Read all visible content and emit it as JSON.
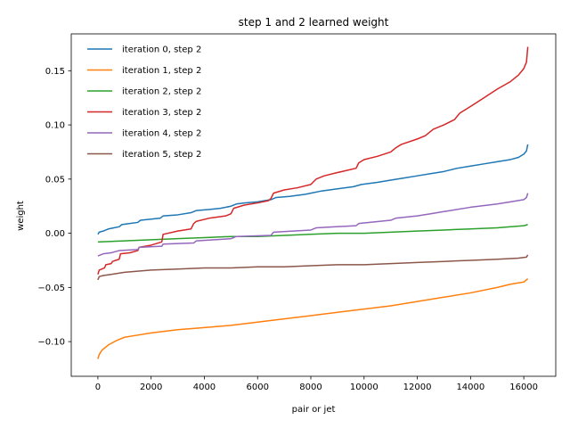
{
  "chart_data": {
    "type": "line",
    "title": "step 1 and 2 learned weight",
    "xlabel": "pair or jet",
    "ylabel": "weight",
    "xlim": [
      -1000,
      17200
    ],
    "ylim": [
      -0.132,
      0.184
    ],
    "xticks": [
      0,
      2000,
      4000,
      6000,
      8000,
      10000,
      12000,
      14000,
      16000
    ],
    "yticks": [
      -0.1,
      -0.05,
      0.0,
      0.05,
      0.1,
      0.15
    ],
    "xtick_labels": [
      "0",
      "2000",
      "4000",
      "6000",
      "8000",
      "10000",
      "12000",
      "14000",
      "16000"
    ],
    "ytick_labels": [
      "−0.10",
      "−0.05",
      "0.00",
      "0.05",
      "0.10",
      "0.15"
    ],
    "grid": false,
    "legend_position": "top-left",
    "series": [
      {
        "name": "iteration 0, step 2",
        "color": "#1f77b4",
        "points": [
          [
            0,
            -0.001
          ],
          [
            50,
            0.001
          ],
          [
            200,
            0.002
          ],
          [
            400,
            0.004
          ],
          [
            600,
            0.005
          ],
          [
            800,
            0.006
          ],
          [
            900,
            0.008
          ],
          [
            1200,
            0.009
          ],
          [
            1500,
            0.01
          ],
          [
            1600,
            0.012
          ],
          [
            2000,
            0.013
          ],
          [
            2350,
            0.014
          ],
          [
            2450,
            0.016
          ],
          [
            3000,
            0.017
          ],
          [
            3500,
            0.019
          ],
          [
            3700,
            0.021
          ],
          [
            4200,
            0.022
          ],
          [
            4600,
            0.023
          ],
          [
            5000,
            0.025
          ],
          [
            5200,
            0.027
          ],
          [
            5500,
            0.028
          ],
          [
            6000,
            0.029
          ],
          [
            6500,
            0.031
          ],
          [
            6700,
            0.033
          ],
          [
            7200,
            0.034
          ],
          [
            7800,
            0.036
          ],
          [
            8000,
            0.037
          ],
          [
            8400,
            0.039
          ],
          [
            9000,
            0.041
          ],
          [
            9600,
            0.043
          ],
          [
            9900,
            0.045
          ],
          [
            10500,
            0.047
          ],
          [
            11000,
            0.049
          ],
          [
            11500,
            0.051
          ],
          [
            12000,
            0.053
          ],
          [
            12500,
            0.055
          ],
          [
            13000,
            0.057
          ],
          [
            13500,
            0.06
          ],
          [
            14000,
            0.062
          ],
          [
            14500,
            0.064
          ],
          [
            15000,
            0.066
          ],
          [
            15500,
            0.068
          ],
          [
            15800,
            0.07
          ],
          [
            16000,
            0.073
          ],
          [
            16100,
            0.076
          ],
          [
            16150,
            0.082
          ]
        ]
      },
      {
        "name": "iteration 1, step 2",
        "color": "#ff7f0e",
        "points": [
          [
            0,
            -0.116
          ],
          [
            50,
            -0.112
          ],
          [
            150,
            -0.108
          ],
          [
            400,
            -0.103
          ],
          [
            700,
            -0.099
          ],
          [
            1000,
            -0.096
          ],
          [
            1500,
            -0.094
          ],
          [
            2000,
            -0.092
          ],
          [
            3000,
            -0.089
          ],
          [
            4000,
            -0.087
          ],
          [
            5000,
            -0.085
          ],
          [
            6000,
            -0.082
          ],
          [
            7000,
            -0.079
          ],
          [
            8000,
            -0.076
          ],
          [
            9000,
            -0.073
          ],
          [
            10000,
            -0.07
          ],
          [
            11000,
            -0.067
          ],
          [
            12000,
            -0.063
          ],
          [
            13000,
            -0.059
          ],
          [
            14000,
            -0.055
          ],
          [
            15000,
            -0.05
          ],
          [
            15500,
            -0.047
          ],
          [
            16000,
            -0.045
          ],
          [
            16150,
            -0.042
          ]
        ]
      },
      {
        "name": "iteration 2, step 2",
        "color": "#2ca02c",
        "points": [
          [
            0,
            -0.008
          ],
          [
            1000,
            -0.007
          ],
          [
            2000,
            -0.006
          ],
          [
            3000,
            -0.005
          ],
          [
            4000,
            -0.004
          ],
          [
            5000,
            -0.003
          ],
          [
            6000,
            -0.003
          ],
          [
            7000,
            -0.002
          ],
          [
            8000,
            -0.001
          ],
          [
            9000,
            -0.0
          ],
          [
            10000,
            0.0
          ],
          [
            11000,
            0.001
          ],
          [
            12000,
            0.002
          ],
          [
            13000,
            0.003
          ],
          [
            14000,
            0.004
          ],
          [
            15000,
            0.005
          ],
          [
            16000,
            0.007
          ],
          [
            16150,
            0.008
          ]
        ]
      },
      {
        "name": "iteration 3, step 2",
        "color": "#d62728",
        "points": [
          [
            0,
            -0.038
          ],
          [
            50,
            -0.034
          ],
          [
            250,
            -0.032
          ],
          [
            300,
            -0.029
          ],
          [
            500,
            -0.028
          ],
          [
            550,
            -0.026
          ],
          [
            800,
            -0.024
          ],
          [
            850,
            -0.019
          ],
          [
            1200,
            -0.018
          ],
          [
            1500,
            -0.016
          ],
          [
            1550,
            -0.013
          ],
          [
            2000,
            -0.011
          ],
          [
            2400,
            -0.008
          ],
          [
            2450,
            -0.001
          ],
          [
            3000,
            0.002
          ],
          [
            3500,
            0.004
          ],
          [
            3600,
            0.009
          ],
          [
            3700,
            0.011
          ],
          [
            4200,
            0.014
          ],
          [
            4800,
            0.016
          ],
          [
            5000,
            0.018
          ],
          [
            5100,
            0.023
          ],
          [
            5500,
            0.026
          ],
          [
            6000,
            0.028
          ],
          [
            6400,
            0.03
          ],
          [
            6500,
            0.032
          ],
          [
            6600,
            0.037
          ],
          [
            7000,
            0.04
          ],
          [
            7500,
            0.042
          ],
          [
            8000,
            0.045
          ],
          [
            8200,
            0.05
          ],
          [
            8500,
            0.053
          ],
          [
            9000,
            0.056
          ],
          [
            9700,
            0.06
          ],
          [
            9800,
            0.065
          ],
          [
            10000,
            0.068
          ],
          [
            10500,
            0.071
          ],
          [
            11000,
            0.075
          ],
          [
            11200,
            0.079
          ],
          [
            11400,
            0.082
          ],
          [
            12000,
            0.087
          ],
          [
            12300,
            0.09
          ],
          [
            12600,
            0.096
          ],
          [
            13000,
            0.1
          ],
          [
            13400,
            0.105
          ],
          [
            13600,
            0.111
          ],
          [
            14000,
            0.117
          ],
          [
            14500,
            0.125
          ],
          [
            15000,
            0.133
          ],
          [
            15500,
            0.14
          ],
          [
            15800,
            0.146
          ],
          [
            16000,
            0.152
          ],
          [
            16100,
            0.158
          ],
          [
            16150,
            0.172
          ]
        ]
      },
      {
        "name": "iteration 4, step 2",
        "color": "#9467bd",
        "points": [
          [
            0,
            -0.021
          ],
          [
            200,
            -0.019
          ],
          [
            500,
            -0.018
          ],
          [
            800,
            -0.016
          ],
          [
            1500,
            -0.015
          ],
          [
            1550,
            -0.013
          ],
          [
            2400,
            -0.012
          ],
          [
            2450,
            -0.01
          ],
          [
            3600,
            -0.009
          ],
          [
            3700,
            -0.007
          ],
          [
            5000,
            -0.005
          ],
          [
            5200,
            -0.003
          ],
          [
            6500,
            -0.002
          ],
          [
            6600,
            0.001
          ],
          [
            8000,
            0.003
          ],
          [
            8200,
            0.005
          ],
          [
            9700,
            0.007
          ],
          [
            9800,
            0.009
          ],
          [
            11000,
            0.012
          ],
          [
            11200,
            0.014
          ],
          [
            12000,
            0.016
          ],
          [
            12500,
            0.018
          ],
          [
            13000,
            0.02
          ],
          [
            14000,
            0.024
          ],
          [
            15000,
            0.027
          ],
          [
            15500,
            0.029
          ],
          [
            16000,
            0.031
          ],
          [
            16100,
            0.033
          ],
          [
            16150,
            0.037
          ]
        ]
      },
      {
        "name": "iteration 5, step 2",
        "color": "#8c564b",
        "points": [
          [
            0,
            -0.043
          ],
          [
            50,
            -0.04
          ],
          [
            200,
            -0.039
          ],
          [
            500,
            -0.038
          ],
          [
            1000,
            -0.036
          ],
          [
            1500,
            -0.035
          ],
          [
            2000,
            -0.034
          ],
          [
            3000,
            -0.033
          ],
          [
            4000,
            -0.032
          ],
          [
            5000,
            -0.032
          ],
          [
            6000,
            -0.031
          ],
          [
            7000,
            -0.031
          ],
          [
            8000,
            -0.03
          ],
          [
            9000,
            -0.029
          ],
          [
            10000,
            -0.029
          ],
          [
            11000,
            -0.028
          ],
          [
            12000,
            -0.027
          ],
          [
            13000,
            -0.026
          ],
          [
            14000,
            -0.025
          ],
          [
            15000,
            -0.024
          ],
          [
            15800,
            -0.023
          ],
          [
            16100,
            -0.022
          ],
          [
            16150,
            -0.02
          ]
        ]
      }
    ]
  }
}
